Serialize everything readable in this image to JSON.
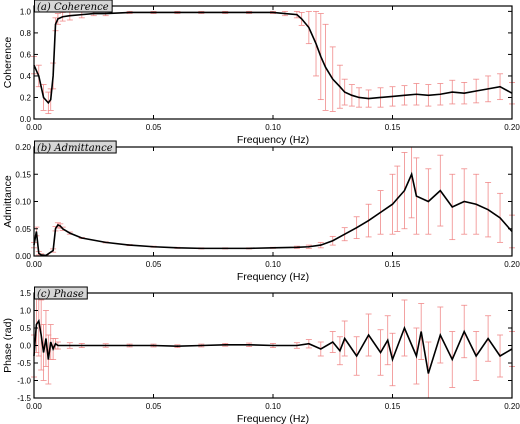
{
  "colors": {
    "line": "#000000",
    "error_bars": "#f08a8a",
    "title_box": "#d6d6d6",
    "frame": "#000000"
  },
  "chart_data": [
    {
      "type": "line",
      "title": "(a) Coherence",
      "xlabel": "Frequency (Hz)",
      "ylabel": "Coherence",
      "xlim": [
        0,
        0.2
      ],
      "ylim": [
        0,
        1.05
      ],
      "xticks": [
        "0.00",
        "0.05",
        "0.10",
        "0.15",
        "0.20"
      ],
      "xtick_values": [
        0,
        0.05,
        0.1,
        0.15,
        0.2
      ],
      "yticks": [
        "0.0",
        "0.2",
        "0.4",
        "0.6",
        "0.8",
        "1.0"
      ],
      "ytick_values": [
        0,
        0.2,
        0.4,
        0.6,
        0.8,
        1.0
      ],
      "grid": false,
      "error_bars": true,
      "series": [
        {
          "x": [
            0.0,
            0.002,
            0.004,
            0.006,
            0.007,
            0.008,
            0.009,
            0.01,
            0.012,
            0.015,
            0.02,
            0.025,
            0.03,
            0.04,
            0.05,
            0.06,
            0.07,
            0.08,
            0.09,
            0.1,
            0.105,
            0.11,
            0.112,
            0.115,
            0.118,
            0.12,
            0.122,
            0.125,
            0.128,
            0.13,
            0.133,
            0.136,
            0.14,
            0.145,
            0.15,
            0.155,
            0.16,
            0.165,
            0.17,
            0.175,
            0.18,
            0.185,
            0.19,
            0.195,
            0.2
          ],
          "y": [
            0.5,
            0.4,
            0.2,
            0.15,
            0.18,
            0.4,
            0.88,
            0.93,
            0.95,
            0.96,
            0.97,
            0.98,
            0.98,
            0.99,
            0.99,
            0.99,
            0.99,
            0.99,
            0.99,
            0.99,
            0.98,
            0.97,
            0.93,
            0.85,
            0.7,
            0.58,
            0.48,
            0.37,
            0.3,
            0.25,
            0.22,
            0.2,
            0.19,
            0.2,
            0.21,
            0.22,
            0.23,
            0.22,
            0.23,
            0.25,
            0.24,
            0.26,
            0.28,
            0.3,
            0.24
          ],
          "err": [
            0.08,
            0.1,
            0.12,
            0.1,
            0.1,
            0.12,
            0.06,
            0.05,
            0.04,
            0.04,
            0.03,
            0.02,
            0.02,
            0.01,
            0.01,
            0.01,
            0.01,
            0.01,
            0.01,
            0.01,
            0.02,
            0.03,
            0.06,
            0.15,
            0.3,
            0.4,
            0.4,
            0.3,
            0.2,
            0.12,
            0.1,
            0.09,
            0.08,
            0.09,
            0.09,
            0.09,
            0.1,
            0.1,
            0.1,
            0.11,
            0.1,
            0.11,
            0.12,
            0.12,
            0.1
          ]
        }
      ]
    },
    {
      "type": "line",
      "title": "(b) Admittance",
      "xlabel": "Frequency (Hz)",
      "ylabel": "Admittance",
      "xlim": [
        0,
        0.2
      ],
      "ylim": [
        0,
        0.2
      ],
      "xticks": [
        "0.00",
        "0.05",
        "0.10",
        "0.15",
        "0.20"
      ],
      "xtick_values": [
        0,
        0.05,
        0.1,
        0.15,
        0.2
      ],
      "yticks": [
        "0.00",
        "0.05",
        "0.10",
        "0.15",
        "0.20"
      ],
      "ytick_values": [
        0,
        0.05,
        0.1,
        0.15,
        0.2
      ],
      "grid": false,
      "error_bars": true,
      "series": [
        {
          "x": [
            0.0,
            0.001,
            0.002,
            0.003,
            0.005,
            0.008,
            0.009,
            0.01,
            0.011,
            0.012,
            0.015,
            0.02,
            0.03,
            0.04,
            0.05,
            0.06,
            0.07,
            0.08,
            0.09,
            0.1,
            0.11,
            0.115,
            0.12,
            0.125,
            0.13,
            0.135,
            0.14,
            0.145,
            0.15,
            0.152,
            0.155,
            0.158,
            0.16,
            0.165,
            0.17,
            0.175,
            0.18,
            0.185,
            0.19,
            0.195,
            0.2
          ],
          "y": [
            0.02,
            0.045,
            0.005,
            0.002,
            0.001,
            0.01,
            0.05,
            0.057,
            0.055,
            0.05,
            0.042,
            0.033,
            0.025,
            0.02,
            0.017,
            0.015,
            0.014,
            0.014,
            0.014,
            0.015,
            0.016,
            0.017,
            0.02,
            0.028,
            0.04,
            0.052,
            0.065,
            0.08,
            0.095,
            0.105,
            0.12,
            0.15,
            0.11,
            0.1,
            0.12,
            0.09,
            0.1,
            0.095,
            0.085,
            0.07,
            0.045
          ],
          "err": [
            0.005,
            0.008,
            0.003,
            0.002,
            0.001,
            0.003,
            0.004,
            0.004,
            0.004,
            0.003,
            0.002,
            0.001,
            0.001,
            0.001,
            0.001,
            0.001,
            0.001,
            0.001,
            0.001,
            0.001,
            0.002,
            0.003,
            0.005,
            0.008,
            0.012,
            0.02,
            0.03,
            0.04,
            0.055,
            0.06,
            0.07,
            0.08,
            0.07,
            0.06,
            0.065,
            0.06,
            0.06,
            0.055,
            0.05,
            0.045,
            0.03
          ]
        }
      ]
    },
    {
      "type": "line",
      "title": "(c) Phase",
      "xlabel": "Frequency (Hz)",
      "ylabel": "Phase (rad)",
      "xlim": [
        0,
        0.2
      ],
      "ylim": [
        -1.5,
        1.5
      ],
      "xticks": [
        "0.00",
        "0.05",
        "0.10",
        "0.15",
        "0.20"
      ],
      "xtick_values": [
        0,
        0.05,
        0.1,
        0.15,
        0.2
      ],
      "yticks": [
        "-1.5",
        "-1.0",
        "-0.5",
        "0.0",
        "0.5",
        "1.0",
        "1.5"
      ],
      "ytick_values": [
        -1.5,
        -1.0,
        -0.5,
        0,
        0.5,
        1.0,
        1.5
      ],
      "grid": false,
      "error_bars": true,
      "series": [
        {
          "x": [
            0.0,
            0.001,
            0.002,
            0.003,
            0.004,
            0.005,
            0.006,
            0.007,
            0.008,
            0.009,
            0.01,
            0.015,
            0.02,
            0.03,
            0.04,
            0.05,
            0.06,
            0.07,
            0.08,
            0.09,
            0.1,
            0.11,
            0.115,
            0.12,
            0.125,
            0.128,
            0.13,
            0.135,
            0.14,
            0.145,
            0.148,
            0.15,
            0.155,
            0.16,
            0.162,
            0.165,
            0.17,
            0.175,
            0.18,
            0.185,
            0.19,
            0.195,
            0.2
          ],
          "y": [
            -0.3,
            0.6,
            0.7,
            0.3,
            -0.2,
            0.2,
            -0.4,
            0.1,
            -0.1,
            0.05,
            0.0,
            0.0,
            0.0,
            0.0,
            0.0,
            0.0,
            -0.02,
            0.0,
            0.02,
            0.02,
            0.0,
            0.0,
            0.05,
            -0.1,
            0.1,
            -0.15,
            0.2,
            -0.3,
            0.3,
            -0.2,
            0.15,
            -0.4,
            0.5,
            -0.3,
            0.4,
            -0.8,
            0.3,
            -0.4,
            0.4,
            -0.3,
            0.2,
            -0.3,
            -0.1
          ],
          "err": [
            0.6,
            0.8,
            1.0,
            1.0,
            0.8,
            0.8,
            0.7,
            0.5,
            0.3,
            0.15,
            0.1,
            0.08,
            0.06,
            0.05,
            0.04,
            0.04,
            0.04,
            0.04,
            0.04,
            0.05,
            0.06,
            0.08,
            0.12,
            0.2,
            0.3,
            0.4,
            0.5,
            0.55,
            0.6,
            0.65,
            0.7,
            0.75,
            0.8,
            0.8,
            0.8,
            0.9,
            0.8,
            0.8,
            0.75,
            0.7,
            0.65,
            0.6,
            0.5
          ]
        }
      ]
    }
  ]
}
